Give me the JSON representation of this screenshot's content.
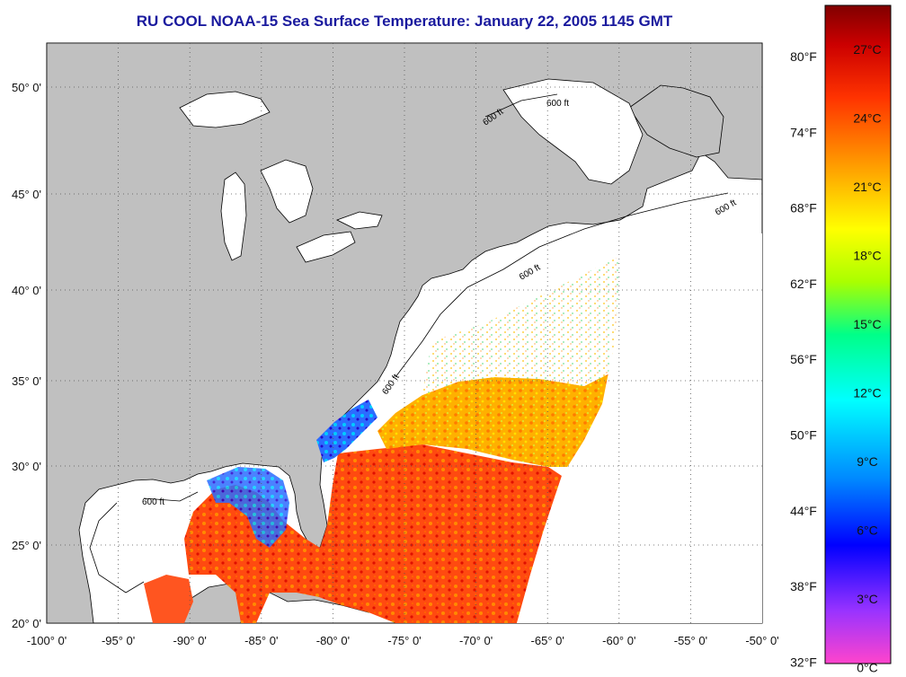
{
  "title": "RU COOL  NOAA-15  Sea Surface Temperature:  January 22, 2005 1145 GMT",
  "colors": {
    "land": "#c0c0c0",
    "ocean_nodata": "#ffffff",
    "title": "#1a1a9e"
  },
  "map": {
    "projection": "equirectangular",
    "lon_ticks": [
      "-100° 0'",
      "-95° 0'",
      "-90° 0'",
      "-85° 0'",
      "-80° 0'",
      "-75° 0'",
      "-70° 0'",
      "-65° 0'",
      "-60° 0'",
      "-55° 0'",
      "-50° 0'"
    ],
    "lat_ticks": [
      "20° 0'",
      "25° 0'",
      "30° 0'",
      "35° 0'",
      "40° 0'",
      "45° 0'",
      "50° 0'"
    ],
    "isobath_label": "600 ft",
    "grid": true
  },
  "colorbar": {
    "celsius_labels": [
      "27°C",
      "24°C",
      "21°C",
      "18°C",
      "15°C",
      "12°C",
      "9°C",
      "6°C",
      "3°C",
      "0°C"
    ],
    "fahrenheit_labels": [
      "80°F",
      "74°F",
      "68°F",
      "62°F",
      "56°F",
      "50°F",
      "44°F",
      "38°F",
      "32°F"
    ],
    "stops": [
      "#ff44cc",
      "#9933ff",
      "#0000ff",
      "#0088ff",
      "#00ffff",
      "#00ff88",
      "#aaff00",
      "#ffff00",
      "#ff9900",
      "#ff3300",
      "#cc0000",
      "#800000"
    ]
  }
}
